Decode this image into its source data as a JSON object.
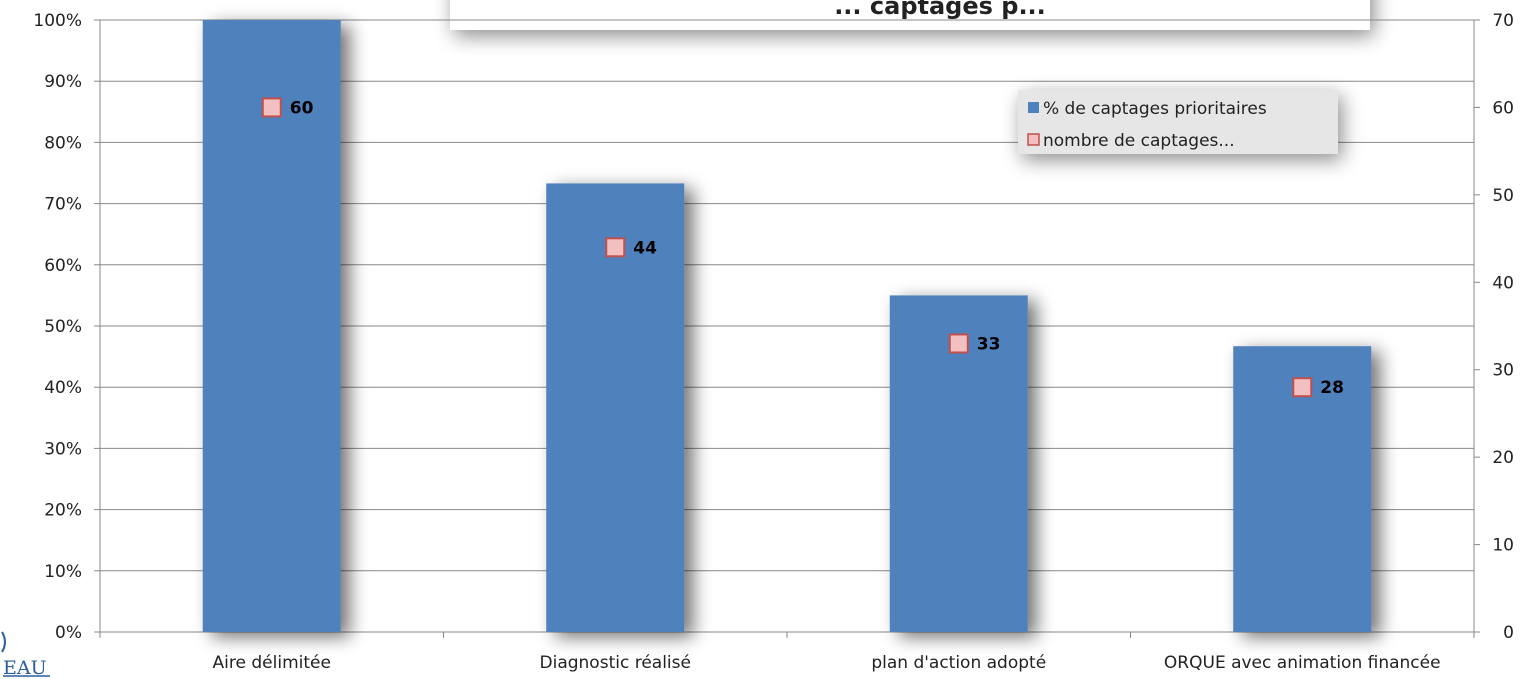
{
  "chart_data": {
    "type": "bar",
    "title": "... captages p...",
    "categories": [
      "Aire délimitée",
      "Diagnostic réalisé",
      "plan d'action adopté",
      "ORQUE avec animation financée"
    ],
    "series": [
      {
        "name": "% de captages prioritaires",
        "type": "bar",
        "axis": "left",
        "values": [
          100,
          73.3,
          55,
          46.7
        ],
        "color": "#4f81bd"
      },
      {
        "name": "nombre de captages...",
        "type": "marker",
        "axis": "right",
        "values": [
          60,
          44,
          33,
          28
        ],
        "color": "#f2c0c0",
        "stroke": "#c0504d"
      }
    ],
    "y_left": {
      "ylim": [
        0,
        100
      ],
      "ticks": [
        0,
        10,
        20,
        30,
        40,
        50,
        60,
        70,
        80,
        90,
        100
      ],
      "unit": "%"
    },
    "y_right": {
      "ylim": [
        0,
        70
      ],
      "ticks": [
        0,
        10,
        20,
        30,
        40,
        50,
        60,
        70
      ]
    },
    "grid": true,
    "legend": "top-right"
  },
  "logo_text": "EAU"
}
